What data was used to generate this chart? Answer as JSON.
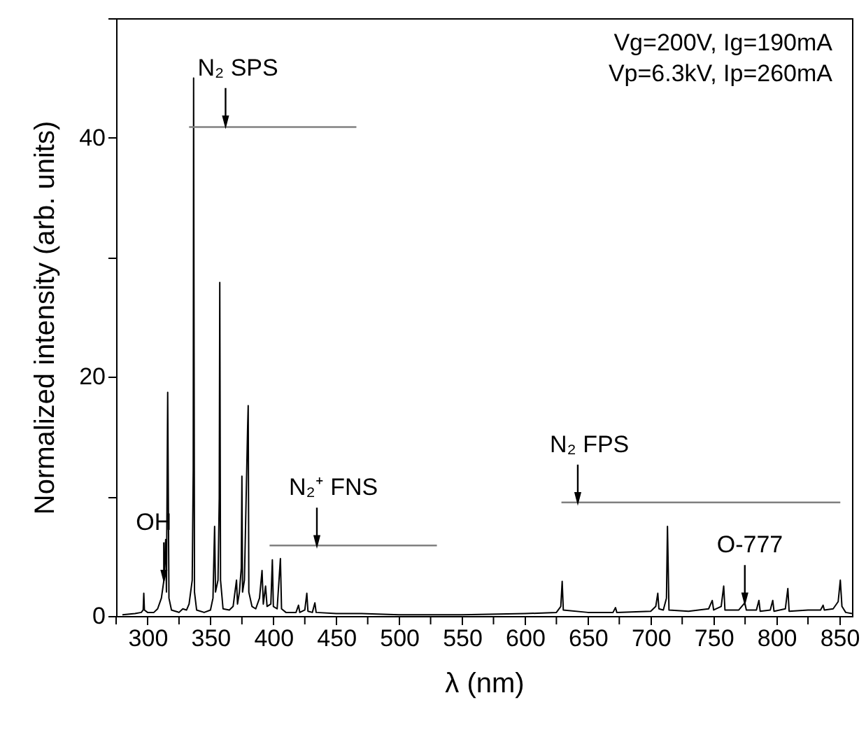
{
  "chart_data": {
    "type": "line",
    "xlabel": "λ (nm)",
    "ylabel": "Normalized intensity (arb. units)",
    "xlim": [
      275,
      860
    ],
    "ylim": [
      0,
      50
    ],
    "xticks": [
      {
        "value": 275,
        "label": null
      },
      300,
      {
        "value": 325,
        "label": null
      },
      350,
      {
        "value": 375,
        "label": null
      },
      400,
      {
        "value": 425,
        "label": null
      },
      450,
      {
        "value": 475,
        "label": null
      },
      500,
      {
        "value": 525,
        "label": null
      },
      550,
      {
        "value": 575,
        "label": null
      },
      600,
      {
        "value": 625,
        "label": null
      },
      650,
      {
        "value": 675,
        "label": null
      },
      700,
      {
        "value": 725,
        "label": null
      },
      750,
      {
        "value": 775,
        "label": null
      },
      800,
      {
        "value": 825,
        "label": null
      },
      850
    ],
    "yticks": [
      0,
      {
        "value": 10,
        "label": null
      },
      20,
      {
        "value": 30,
        "label": null
      },
      40,
      {
        "value": 50,
        "label": null
      }
    ],
    "annotations": [
      "Vg=200V, Ig=190mA",
      "Vp=6.3kV, Ip=260mA",
      {
        "text": "OH",
        "x": 313,
        "y": 3
      },
      {
        "text": "N₂ SPS",
        "x": 362,
        "y": 41
      },
      {
        "text": "N₂⁺ FNS",
        "x": 434.6,
        "y": 5.9
      },
      {
        "text": "N₂ FPS",
        "x": 642,
        "y": 9.5
      },
      {
        "text": "O-777",
        "x": 774.8,
        "y": 1.1
      }
    ],
    "series": [
      {
        "type": "line",
        "color": "#000000",
        "x": [
          280,
          290,
          295,
          296.5,
          297,
          297.5,
          300,
          305,
          308,
          311,
          313,
          314.4,
          315,
          316,
          317,
          319,
          325,
          328,
          331,
          333,
          335.5,
          336.3,
          336.6,
          337.3,
          339,
          345,
          350,
          352,
          353.3,
          354,
          356,
          357,
          357.4,
          358,
          360,
          365,
          368,
          370.7,
          371.5,
          373,
          374.5,
          375,
          375.5,
          377,
          379.5,
          380,
          380.5,
          383,
          386,
          389,
          391,
          392,
          393.8,
          395,
          398,
          399.2,
          400,
          403,
          405.6,
          406.5,
          410,
          418,
          420,
          421,
          425,
          426.6,
          427.5,
          431,
          433,
          434,
          450,
          470,
          500,
          550,
          600,
          625,
          628.5,
          629.6,
          630.5,
          650,
          670,
          672,
          673,
          700,
          704,
          705.6,
          706.5,
          710,
          712.5,
          713.3,
          714.5,
          730,
          746,
          748.9,
          750,
          756,
          758,
          759,
          770,
          774.8,
          776,
          784,
          786,
          787,
          795,
          797,
          798,
          807,
          809,
          810,
          825,
          835,
          837,
          838,
          845,
          849,
          850.7,
          852,
          855,
          860
        ],
        "values": [
          0.1,
          0.2,
          0.3,
          0.5,
          1.9,
          0.5,
          0.3,
          0.3,
          0.6,
          1.5,
          3,
          6.4,
          2,
          18.7,
          1.5,
          0.5,
          0.3,
          0.6,
          0.5,
          1,
          3,
          12.2,
          45,
          2,
          0.5,
          0.3,
          0.5,
          1.5,
          7.5,
          2,
          3,
          9.9,
          27.9,
          3,
          0.6,
          0.5,
          0.8,
          3,
          1,
          2,
          4,
          11.7,
          2,
          3,
          15.6,
          17.6,
          2,
          0.8,
          0.6,
          1.5,
          3.8,
          1,
          2.5,
          0.8,
          1,
          4.7,
          0.8,
          0.6,
          4.8,
          0.6,
          0.3,
          0.3,
          0.9,
          0.3,
          0.5,
          1.9,
          0.4,
          0.3,
          1.1,
          0.3,
          0.2,
          0.2,
          0.1,
          0.1,
          0.2,
          0.3,
          0.8,
          2.9,
          0.5,
          0.3,
          0.3,
          0.7,
          0.3,
          0.4,
          0.8,
          1.9,
          0.6,
          0.5,
          1.5,
          7.5,
          0.5,
          0.4,
          0.6,
          1.3,
          0.5,
          0.8,
          2.5,
          0.5,
          0.5,
          1.1,
          0.5,
          0.5,
          1.3,
          0.4,
          0.5,
          1.3,
          0.4,
          0.6,
          2.3,
          0.4,
          0.5,
          0.5,
          0.9,
          0.5,
          0.6,
          1.2,
          3,
          0.8,
          0.3,
          0.2
        ]
      },
      {
        "type": "line",
        "color": "#808080",
        "x": [
          333,
          466
        ],
        "values": [
          40.9,
          40.9
        ]
      },
      {
        "type": "line",
        "color": "#808080",
        "x": [
          397,
          530
        ],
        "values": [
          5.9,
          5.9
        ]
      },
      {
        "type": "line",
        "color": "#808080",
        "x": [
          629,
          850.7
        ],
        "values": [
          9.5,
          9.5
        ]
      }
    ]
  }
}
